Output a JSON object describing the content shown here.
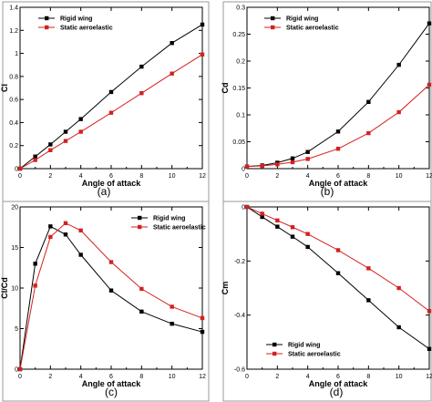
{
  "figure": {
    "colors": {
      "rigid": "#000000",
      "aero": "#d42020",
      "axis": "#000000"
    }
  },
  "chart_data": [
    {
      "type": "line",
      "panel": "(a)",
      "xlabel": "Angle of attack",
      "ylabel": "Cl",
      "xlim": [
        0,
        12
      ],
      "ylim": [
        0,
        1.4
      ],
      "xticks": [
        0,
        2,
        4,
        6,
        8,
        10,
        12
      ],
      "yticks": [
        0,
        0.2,
        0.4,
        0.6,
        0.8,
        1,
        1.2,
        1.4
      ],
      "ytick_labels": [
        "0",
        "0.2",
        "0.4",
        "0.6",
        "0.8",
        "1",
        "1.2",
        "1.4"
      ],
      "legend": "top-left",
      "grid": false,
      "x": [
        0,
        1,
        2,
        3,
        4,
        6,
        8,
        10,
        12
      ],
      "series": [
        {
          "name": "Rigid wing",
          "color": "#000000",
          "marker": "square",
          "values": [
            0.0,
            0.105,
            0.21,
            0.32,
            0.43,
            0.665,
            0.885,
            1.09,
            1.25
          ]
        },
        {
          "name": "Static aeroelastic",
          "color": "#d42020",
          "marker": "square",
          "values": [
            0.0,
            0.075,
            0.16,
            0.24,
            0.32,
            0.485,
            0.655,
            0.825,
            0.99
          ]
        }
      ]
    },
    {
      "type": "line",
      "panel": "(b)",
      "xlabel": "Angle of attack",
      "ylabel": "Cd",
      "xlim": [
        0,
        12
      ],
      "ylim": [
        0,
        0.3
      ],
      "xticks": [
        0,
        2,
        4,
        6,
        8,
        10,
        12
      ],
      "yticks": [
        0,
        0.05,
        0.1,
        0.15,
        0.2,
        0.25,
        0.3
      ],
      "ytick_labels": [
        "0",
        "0.05",
        "0.1",
        "0.15",
        "0.2",
        "0.25",
        "0.3"
      ],
      "legend": "top-left",
      "grid": false,
      "x": [
        0,
        1,
        2,
        3,
        4,
        6,
        8,
        10,
        12
      ],
      "series": [
        {
          "name": "Rigid wing",
          "color": "#000000",
          "marker": "square",
          "values": [
            0.004,
            0.006,
            0.011,
            0.019,
            0.031,
            0.069,
            0.124,
            0.193,
            0.27
          ]
        },
        {
          "name": "Static aeroelastic",
          "color": "#d42020",
          "marker": "square",
          "values": [
            0.004,
            0.005,
            0.008,
            0.012,
            0.018,
            0.037,
            0.066,
            0.105,
            0.156
          ]
        }
      ]
    },
    {
      "type": "line",
      "panel": "(c)",
      "xlabel": "Angle of attack",
      "ylabel": "Cl/Cd",
      "xlim": [
        0,
        12
      ],
      "ylim": [
        0,
        20
      ],
      "xticks": [
        0,
        2,
        4,
        6,
        8,
        10,
        12
      ],
      "yticks": [
        0,
        5,
        10,
        15,
        20
      ],
      "ytick_labels": [
        "0",
        "5",
        "10",
        "15",
        "20"
      ],
      "legend": "top-right",
      "grid": false,
      "x": [
        0,
        1,
        2,
        3,
        4,
        6,
        8,
        10,
        12
      ],
      "series": [
        {
          "name": "Rigid wing",
          "color": "#000000",
          "marker": "square",
          "values": [
            0.0,
            13.0,
            17.6,
            16.6,
            14.1,
            9.7,
            7.1,
            5.6,
            4.6
          ]
        },
        {
          "name": "Static aeroelastic",
          "color": "#d42020",
          "marker": "square",
          "values": [
            0.0,
            10.3,
            16.3,
            18.0,
            17.1,
            13.2,
            9.9,
            7.7,
            6.3
          ]
        }
      ]
    },
    {
      "type": "line",
      "panel": "(d)",
      "xlabel": "Angle of attack",
      "ylabel": "Cm",
      "xlim": [
        0,
        12
      ],
      "ylim": [
        -0.6,
        0
      ],
      "xticks": [
        0,
        2,
        4,
        6,
        8,
        10,
        12
      ],
      "yticks": [
        0,
        -0.2,
        -0.4,
        -0.6
      ],
      "ytick_labels": [
        "0",
        "-0.2",
        "-0.4",
        "-0.6"
      ],
      "legend": "bottom-right",
      "grid": false,
      "x": [
        0,
        1,
        2,
        3,
        4,
        6,
        8,
        10,
        12
      ],
      "series": [
        {
          "name": "Rigid wing",
          "color": "#000000",
          "marker": "square",
          "values": [
            0.0,
            -0.037,
            -0.073,
            -0.11,
            -0.148,
            -0.245,
            -0.345,
            -0.445,
            -0.525
          ]
        },
        {
          "name": "Static aeroelastic",
          "color": "#d42020",
          "marker": "square",
          "values": [
            0.0,
            -0.025,
            -0.05,
            -0.075,
            -0.1,
            -0.16,
            -0.227,
            -0.3,
            -0.385
          ]
        }
      ]
    }
  ]
}
